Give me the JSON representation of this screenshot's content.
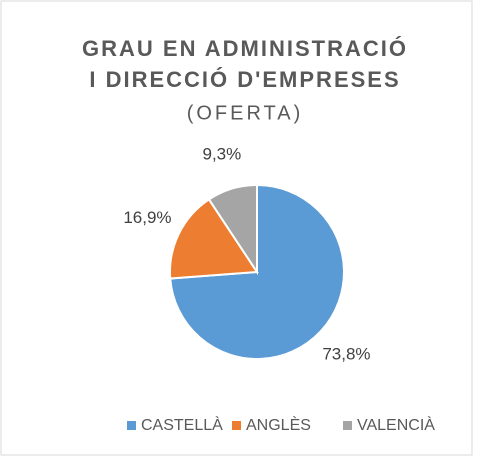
{
  "chart_data": {
    "type": "pie",
    "title": [
      "GRAU EN ADMINISTRACIÓ",
      "I DIRECCIÓ D'EMPRESES"
    ],
    "subtitle": "(OFERTA)",
    "categories": [
      "CASTELLÀ",
      "ANGLÈS",
      "VALENCIÀ"
    ],
    "values": [
      73.8,
      16.9,
      9.3
    ],
    "value_labels": [
      "73,8%",
      "16,9%",
      "9,3%"
    ],
    "colors": [
      "#5b9bd5",
      "#ed7d31",
      "#a5a5a5"
    ],
    "legend": "bottom"
  }
}
